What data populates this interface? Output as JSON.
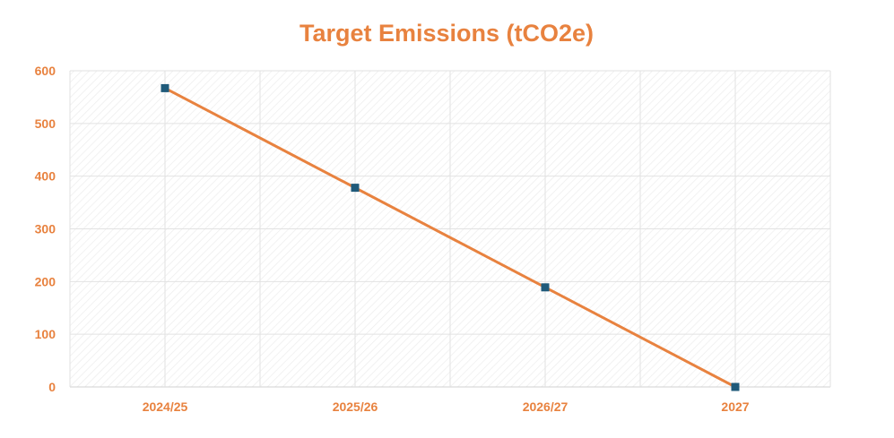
{
  "chart_data": {
    "type": "line",
    "title": "Target Emissions (tCO2e)",
    "xlabel": "",
    "ylabel": "",
    "categories": [
      "2024/25",
      "2025/26",
      "2026/27",
      "2027"
    ],
    "series": [
      {
        "values": [
          567,
          378,
          189,
          0
        ]
      }
    ],
    "ylim": [
      0,
      600
    ],
    "yticks": [
      "0",
      "100",
      "200",
      "300",
      "400",
      "500",
      "600"
    ],
    "grid": true,
    "legend": "none",
    "colors": {
      "title": "#e8823f",
      "tick_labels": "#e8823f",
      "line": "#e8823f",
      "marker": "#1f5a7a",
      "gridline": "#e2e2e2",
      "plot_hatch": "#ececec"
    }
  }
}
